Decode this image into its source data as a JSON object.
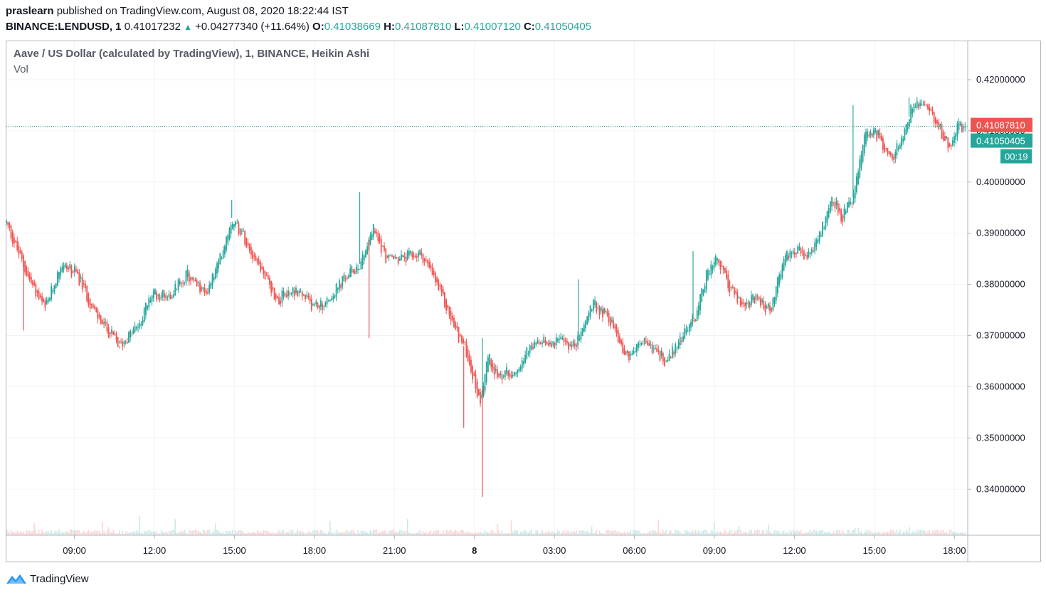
{
  "header": {
    "user": "praslearn",
    "published": "published on TradingView.com, August 08, 2020 18:22:44 IST",
    "symbol": "BINANCE:LENDUSD, 1",
    "last": "0.41017232",
    "change": "+0.04277340 (+11.64%)",
    "o_label": "O:",
    "o_value": "0.41038669",
    "h_label": "H:",
    "h_value": "0.41087810",
    "l_label": "L:",
    "l_value": "0.41007120",
    "c_label": "C:",
    "c_value": "0.41050405"
  },
  "legend": {
    "title": "Aave / US Dollar (calculated by TradingView), 1, BINANCE, Heikin Ashi",
    "vol": "Vol"
  },
  "footer": {
    "brand": "TradingView"
  },
  "colors": {
    "up": "#26a69a",
    "down": "#ef5350",
    "grid": "#f0f3fa",
    "axis": "#b2b5be"
  },
  "chart_data": {
    "type": "candlestick",
    "style": "Heikin Ashi",
    "ylim": [
      0.331,
      0.4275
    ],
    "y_ticks": [
      "0.34000000",
      "0.35000000",
      "0.36000000",
      "0.37000000",
      "0.38000000",
      "0.39000000",
      "0.40000000",
      "0.41000000",
      "0.42000000"
    ],
    "x_ticks": [
      "09:00",
      "12:00",
      "15:00",
      "18:00",
      "21:00",
      "8",
      "03:00",
      "06:00",
      "09:00",
      "12:00",
      "15:00",
      "18:00"
    ],
    "x_tick_hours": [
      9,
      12,
      15,
      18,
      21,
      24,
      27,
      30,
      33,
      36,
      39,
      42
    ],
    "x_range_hours": [
      6.45,
      42.5
    ],
    "path_hours": [
      6.45,
      7.3,
      7.9,
      8.5,
      9.1,
      9.8,
      10.7,
      11.4,
      11.9,
      12.6,
      13.2,
      13.9,
      14.4,
      14.9,
      15.3,
      16.0,
      16.6,
      17.3,
      17.9,
      18.4,
      19.1,
      19.7,
      20.2,
      20.7,
      21.3,
      22.0,
      22.5,
      22.9,
      23.3,
      23.7,
      24.2,
      24.5,
      24.9,
      25.4,
      26.2,
      27.0,
      27.8,
      28.4,
      29.0,
      29.7,
      30.4,
      31.2,
      31.8,
      32.3,
      32.7,
      33.1,
      33.5,
      34.0,
      34.5,
      35.1,
      35.6,
      36.0,
      36.5,
      37.0,
      37.4,
      37.8,
      38.2,
      38.7,
      39.2,
      39.6,
      40.0,
      40.5,
      41.0,
      41.4,
      41.8,
      42.1,
      42.4
    ],
    "path_closes": [
      0.392,
      0.381,
      0.375,
      0.384,
      0.382,
      0.374,
      0.368,
      0.372,
      0.378,
      0.378,
      0.382,
      0.378,
      0.384,
      0.393,
      0.39,
      0.383,
      0.377,
      0.379,
      0.376,
      0.376,
      0.381,
      0.384,
      0.391,
      0.385,
      0.385,
      0.386,
      0.381,
      0.376,
      0.371,
      0.367,
      0.357,
      0.366,
      0.362,
      0.363,
      0.368,
      0.369,
      0.368,
      0.376,
      0.374,
      0.366,
      0.369,
      0.365,
      0.37,
      0.374,
      0.382,
      0.385,
      0.38,
      0.376,
      0.377,
      0.375,
      0.385,
      0.387,
      0.385,
      0.39,
      0.397,
      0.393,
      0.397,
      0.41,
      0.409,
      0.404,
      0.408,
      0.416,
      0.415,
      0.411,
      0.407,
      0.411,
      0.41050405
    ],
    "spike_wicks": [
      {
        "hour": 7.1,
        "low": 0.371
      },
      {
        "hour": 10.7,
        "low": 0.3675
      },
      {
        "hour": 14.9,
        "high": 0.3965
      },
      {
        "hour": 19.7,
        "high": 0.398
      },
      {
        "hour": 20.05,
        "low": 0.3695
      },
      {
        "hour": 23.6,
        "low": 0.352
      },
      {
        "hour": 24.3,
        "low": 0.3385
      },
      {
        "hour": 24.3,
        "high": 0.3695
      },
      {
        "hour": 27.9,
        "high": 0.381
      },
      {
        "hour": 32.2,
        "high": 0.3865
      },
      {
        "hour": 38.2,
        "high": 0.415
      },
      {
        "hour": 40.3,
        "high": 0.4165
      }
    ],
    "price_tags": [
      {
        "text": "0.41087810",
        "value": 0.4108781,
        "color": "#ef5350"
      },
      {
        "text": "0.41050405",
        "value": 0.41050405,
        "color": "#26a69a"
      },
      {
        "text": "00:19",
        "color": "#26a69a"
      }
    ]
  }
}
